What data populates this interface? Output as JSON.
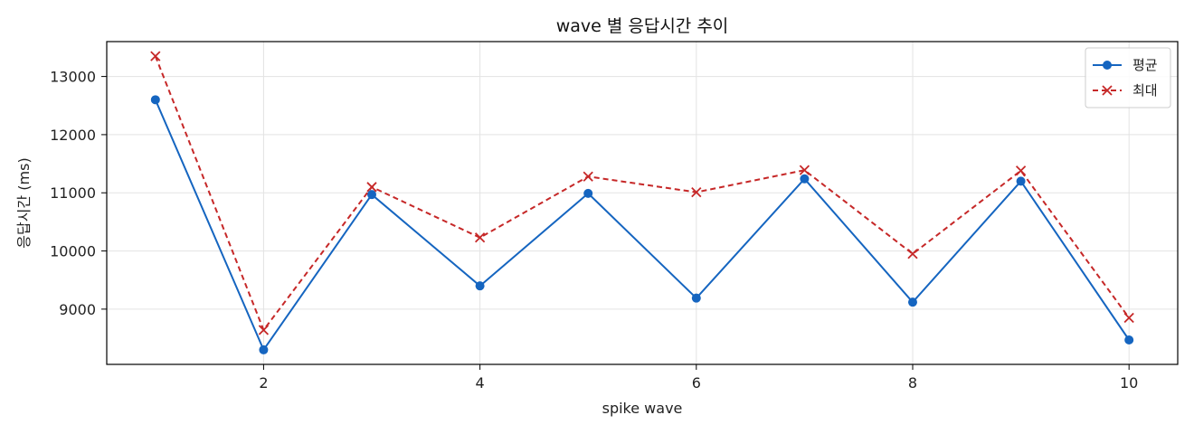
{
  "chart_data": {
    "type": "line",
    "title": "wave 별 응답시간 추이",
    "xlabel": "spike wave",
    "ylabel": "응답시간 (ms)",
    "x": [
      1,
      2,
      3,
      4,
      5,
      6,
      7,
      8,
      9,
      10
    ],
    "xticks": [
      2,
      4,
      6,
      8,
      10
    ],
    "yticks": [
      9000,
      10000,
      11000,
      12000,
      13000
    ],
    "xlim": [
      0.55,
      10.45
    ],
    "ylim": [
      8050,
      13600
    ],
    "grid": true,
    "legend_position": "top-right",
    "series": [
      {
        "name": "평균",
        "color": "#1565c0",
        "marker": "circle",
        "linestyle": "solid",
        "values": [
          12600,
          8300,
          10970,
          9400,
          10990,
          9190,
          11240,
          9120,
          11200,
          8470
        ]
      },
      {
        "name": "최대",
        "color": "#c62828",
        "marker": "x",
        "linestyle": "dashed",
        "values": [
          13350,
          8640,
          11100,
          10230,
          11280,
          11010,
          11390,
          9950,
          11380,
          8850
        ]
      }
    ]
  }
}
